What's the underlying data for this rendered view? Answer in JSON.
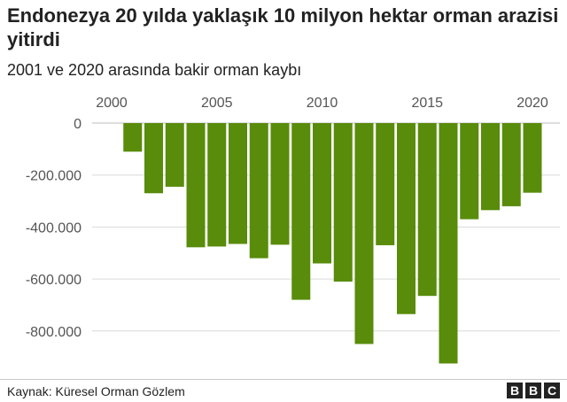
{
  "header": {
    "title": "Endonezya 20 yılda yaklaşık 10 milyon hektar orman arazisi yitirdi",
    "subtitle": "2001 ve 2020 arasında bakir orman kaybı"
  },
  "footer": {
    "source": "Kaynak: Küresel Orman Gözlem",
    "logo_letters": [
      "B",
      "B",
      "C"
    ]
  },
  "colors": {
    "bar": "#588c0a",
    "grid": "#d9d9d9",
    "axis_text": "#555555"
  },
  "chart_data": {
    "type": "bar",
    "title": "Endonezya 20 yılda yaklaşık 10 milyon hektar orman arazisi yitirdi",
    "subtitle": "2001 ve 2020 arasında bakir orman kaybı",
    "x": [
      2001,
      2002,
      2003,
      2004,
      2005,
      2006,
      2007,
      2008,
      2009,
      2010,
      2011,
      2012,
      2013,
      2014,
      2015,
      2016,
      2017,
      2018,
      2019,
      2020
    ],
    "values": [
      -110000,
      -270000,
      -245000,
      -478000,
      -475000,
      -465000,
      -520000,
      -468000,
      -680000,
      -540000,
      -610000,
      -850000,
      -470000,
      -735000,
      -665000,
      -925000,
      -370000,
      -335000,
      -320000,
      -268000
    ],
    "x_ticks": [
      {
        "value": 2000,
        "label": "2000"
      },
      {
        "value": 2005,
        "label": "2005"
      },
      {
        "value": 2010,
        "label": "2010"
      },
      {
        "value": 2015,
        "label": "2015"
      },
      {
        "value": 2020,
        "label": "2020"
      }
    ],
    "y_ticks": [
      {
        "value": 0,
        "label": "0"
      },
      {
        "value": -200000,
        "label": "-200.000"
      },
      {
        "value": -400000,
        "label": "-400.000"
      },
      {
        "value": -600000,
        "label": "-600.000"
      },
      {
        "value": -800000,
        "label": "-800.000"
      }
    ],
    "xlim": [
      2000,
      2020
    ],
    "ylim": [
      -950000,
      0
    ],
    "grid": true,
    "x_axis_position": "top"
  }
}
